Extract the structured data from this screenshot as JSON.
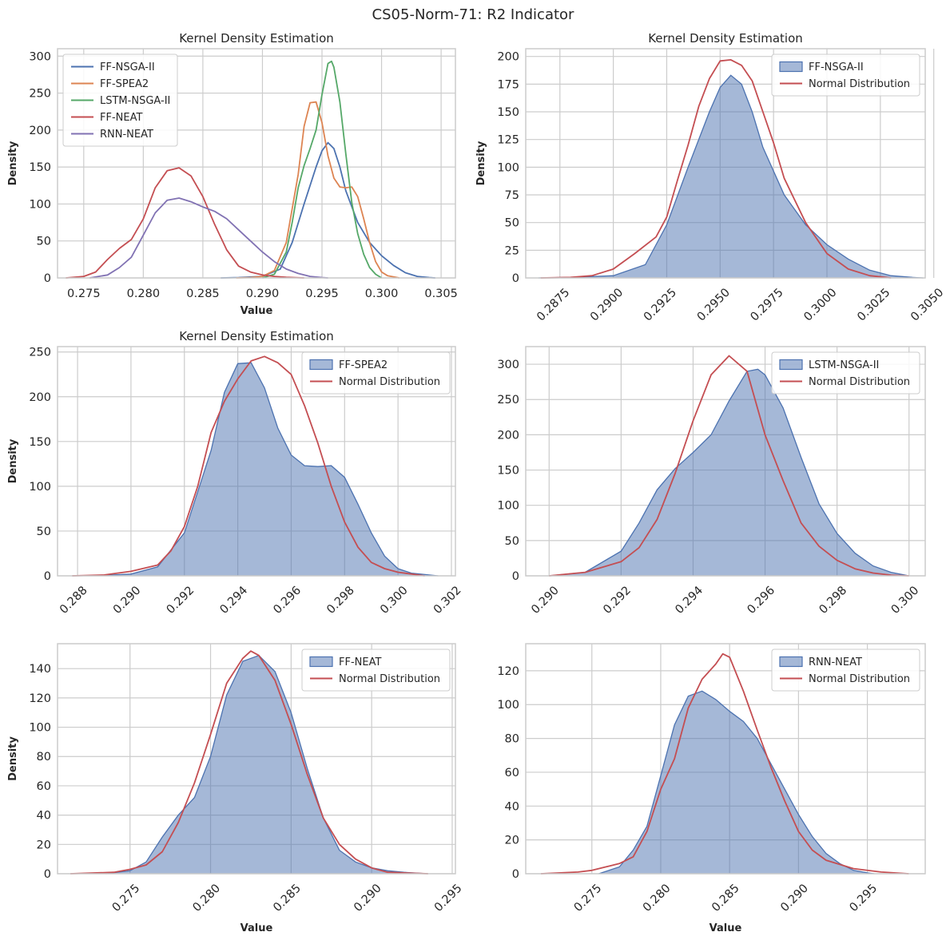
{
  "suptitle": "CS05-Norm-71: R2 Indicator",
  "colors": {
    "nsga": "#4c72b0",
    "spea": "#dd8452",
    "lstm": "#55a868",
    "neat": "#c44e52",
    "rnn": "#8172b3",
    "fill": "#4c72b0",
    "normal": "#c44e52",
    "grid": "#cccccc",
    "frame": "#cccccc"
  },
  "chart_data": [
    {
      "type": "line",
      "title": "Kernel Density Estimation",
      "xlabel": "Value",
      "ylabel": "Density",
      "xlim": [
        0.2728,
        0.3062
      ],
      "ylim": [
        0,
        310
      ],
      "xticks": [
        0.275,
        0.28,
        0.285,
        0.29,
        0.295,
        0.3,
        0.305
      ],
      "xticklabels": [
        "0.275",
        "0.280",
        "0.285",
        "0.290",
        "0.295",
        "0.300",
        "0.305"
      ],
      "yticks": [
        0,
        50,
        100,
        150,
        200,
        250,
        300
      ],
      "yticklabels": [
        "0",
        "50",
        "100",
        "150",
        "200",
        "250",
        "300"
      ],
      "grid": true,
      "legend": "top-left",
      "series": [
        {
          "name": "FF-NSGA-II",
          "color": "nsga",
          "x": [
            0.2865,
            0.288,
            0.29,
            0.2915,
            0.2925,
            0.2935,
            0.2945,
            0.295,
            0.2955,
            0.296,
            0.2965,
            0.297,
            0.298,
            0.299,
            0.3,
            0.301,
            0.302,
            0.303,
            0.304,
            0.3045
          ],
          "y": [
            0,
            0.5,
            2,
            12,
            48,
            100,
            150,
            172,
            183,
            175,
            150,
            118,
            75,
            48,
            30,
            17,
            7,
            2,
            0.5,
            0
          ]
        },
        {
          "name": "FF-SPEA2",
          "color": "spea",
          "x": [
            0.2878,
            0.289,
            0.29,
            0.291,
            0.292,
            0.293,
            0.2935,
            0.294,
            0.2945,
            0.295,
            0.2955,
            0.296,
            0.2965,
            0.297,
            0.2975,
            0.298,
            0.2985,
            0.299,
            0.2995,
            0.3,
            0.3005,
            0.3015
          ],
          "y": [
            0,
            0.5,
            2,
            10,
            48,
            140,
            205,
            237,
            238,
            210,
            165,
            135,
            123,
            122,
            123,
            110,
            80,
            48,
            22,
            8,
            3,
            0
          ]
        },
        {
          "name": "LSTM-NSGA-II",
          "color": "lstm",
          "x": [
            0.29,
            0.291,
            0.292,
            0.2925,
            0.293,
            0.2935,
            0.294,
            0.2945,
            0.295,
            0.2955,
            0.2958,
            0.296,
            0.2965,
            0.297,
            0.2975,
            0.298,
            0.2985,
            0.299,
            0.2995,
            0.3
          ],
          "y": [
            0,
            5,
            35,
            75,
            122,
            152,
            175,
            200,
            248,
            290,
            293,
            285,
            238,
            168,
            102,
            60,
            32,
            14,
            5,
            0
          ]
        },
        {
          "name": "FF-NEAT",
          "color": "neat",
          "x": [
            0.2735,
            0.275,
            0.276,
            0.277,
            0.278,
            0.279,
            0.28,
            0.281,
            0.282,
            0.283,
            0.284,
            0.285,
            0.286,
            0.287,
            0.288,
            0.289,
            0.29,
            0.291,
            0.292,
            0.2935
          ],
          "y": [
            0,
            2,
            8,
            25,
            40,
            52,
            80,
            122,
            145,
            149,
            138,
            110,
            72,
            38,
            16,
            8,
            4,
            2,
            1,
            0
          ]
        },
        {
          "name": "RNN-NEAT",
          "color": "rnn",
          "x": [
            0.2755,
            0.277,
            0.278,
            0.279,
            0.28,
            0.281,
            0.282,
            0.283,
            0.284,
            0.285,
            0.286,
            0.287,
            0.288,
            0.289,
            0.29,
            0.291,
            0.292,
            0.293,
            0.294,
            0.295,
            0.2955
          ],
          "y": [
            0,
            4,
            14,
            28,
            58,
            88,
            105,
            108,
            103,
            96,
            90,
            80,
            65,
            50,
            35,
            22,
            12,
            6,
            2,
            0.5,
            0
          ]
        }
      ]
    },
    {
      "type": "area",
      "title": "Kernel Density Estimation",
      "xlabel": "",
      "ylabel": "Density",
      "xlim": [
        0.2859,
        0.3046
      ],
      "ylim": [
        0,
        207
      ],
      "xticks": [
        0.2875,
        0.29,
        0.2925,
        0.295,
        0.2975,
        0.3,
        0.3025,
        0.305
      ],
      "xticklabels": [
        "0.2875",
        "0.2900",
        "0.2925",
        "0.2950",
        "0.2975",
        "0.3000",
        "0.3025",
        "0.3050"
      ],
      "yticks": [
        0,
        25,
        50,
        75,
        100,
        125,
        150,
        175,
        200
      ],
      "yticklabels": [
        "0",
        "25",
        "50",
        "75",
        "100",
        "125",
        "150",
        "175",
        "200"
      ],
      "grid": true,
      "legend": "top-right",
      "series": [
        {
          "name": "FF-NSGA-II",
          "kind": "fill",
          "color": "fill",
          "x": [
            0.2865,
            0.288,
            0.29,
            0.2915,
            0.2925,
            0.2935,
            0.2945,
            0.295,
            0.2955,
            0.296,
            0.2965,
            0.297,
            0.298,
            0.299,
            0.3,
            0.301,
            0.302,
            0.303,
            0.304,
            0.3045
          ],
          "y": [
            0,
            0.5,
            2,
            12,
            48,
            100,
            150,
            172,
            183,
            175,
            150,
            118,
            75,
            48,
            30,
            17,
            7,
            2,
            0.5,
            0
          ]
        },
        {
          "name": "Normal Distribution",
          "kind": "line",
          "color": "normal",
          "x": [
            0.2866,
            0.288,
            0.289,
            0.29,
            0.291,
            0.292,
            0.2925,
            0.293,
            0.2935,
            0.294,
            0.2945,
            0.295,
            0.2955,
            0.296,
            0.2965,
            0.297,
            0.2975,
            0.298,
            0.299,
            0.3,
            0.301,
            0.302,
            0.303
          ],
          "y": [
            0,
            0.5,
            2,
            8,
            22,
            37,
            55,
            88,
            120,
            155,
            180,
            196,
            197,
            192,
            178,
            150,
            122,
            90,
            50,
            22,
            8,
            2,
            0
          ]
        }
      ]
    },
    {
      "type": "area",
      "title": "Kernel Density Estimation",
      "xlabel": "",
      "ylabel": "Density",
      "xlim": [
        0.28725,
        0.30215
      ],
      "ylim": [
        0,
        256
      ],
      "xticks": [
        0.288,
        0.29,
        0.292,
        0.294,
        0.296,
        0.298,
        0.3,
        0.302
      ],
      "xticklabels": [
        "0.288",
        "0.290",
        "0.292",
        "0.294",
        "0.296",
        "0.298",
        "0.300",
        "0.302"
      ],
      "yticks": [
        0,
        50,
        100,
        150,
        200,
        250
      ],
      "yticklabels": [
        "0",
        "50",
        "100",
        "150",
        "200",
        "250"
      ],
      "grid": true,
      "legend": "top-right",
      "series": [
        {
          "name": "FF-SPEA2",
          "kind": "fill",
          "color": "fill",
          "x": [
            0.2878,
            0.289,
            0.29,
            0.291,
            0.292,
            0.293,
            0.2935,
            0.294,
            0.2945,
            0.295,
            0.2955,
            0.296,
            0.2965,
            0.297,
            0.2975,
            0.298,
            0.2985,
            0.299,
            0.2995,
            0.3,
            0.3005,
            0.3015
          ],
          "y": [
            0,
            0.5,
            2,
            10,
            48,
            140,
            205,
            237,
            238,
            210,
            165,
            135,
            123,
            122,
            123,
            110,
            80,
            48,
            22,
            8,
            3,
            0
          ]
        },
        {
          "name": "Normal Distribution",
          "kind": "line",
          "color": "normal",
          "x": [
            0.2878,
            0.289,
            0.29,
            0.291,
            0.2915,
            0.292,
            0.2925,
            0.293,
            0.2935,
            0.294,
            0.2945,
            0.295,
            0.2955,
            0.296,
            0.2965,
            0.297,
            0.2975,
            0.298,
            0.2985,
            0.299,
            0.2995,
            0.3,
            0.301
          ],
          "y": [
            0,
            1,
            5,
            12,
            28,
            55,
            100,
            160,
            195,
            220,
            240,
            245,
            238,
            225,
            190,
            148,
            100,
            60,
            32,
            15,
            8,
            4,
            0
          ]
        }
      ]
    },
    {
      "type": "area",
      "title": "",
      "xlabel": "",
      "ylabel": "",
      "xlim": [
        0.28935,
        0.30045
      ],
      "ylim": [
        0,
        325
      ],
      "xticks": [
        0.29,
        0.292,
        0.294,
        0.296,
        0.298,
        0.3
      ],
      "xticklabels": [
        "0.290",
        "0.292",
        "0.294",
        "0.296",
        "0.298",
        "0.300"
      ],
      "yticks": [
        0,
        50,
        100,
        150,
        200,
        250,
        300
      ],
      "yticklabels": [
        "0",
        "50",
        "100",
        "150",
        "200",
        "250",
        "300"
      ],
      "grid": true,
      "legend": "top-right",
      "series": [
        {
          "name": "LSTM-NSGA-II",
          "kind": "fill",
          "color": "fill",
          "x": [
            0.29,
            0.291,
            0.292,
            0.2925,
            0.293,
            0.2935,
            0.294,
            0.2945,
            0.295,
            0.2955,
            0.2958,
            0.296,
            0.2965,
            0.297,
            0.2975,
            0.298,
            0.2985,
            0.299,
            0.2995,
            0.3
          ],
          "y": [
            0,
            5,
            35,
            75,
            122,
            152,
            175,
            200,
            248,
            290,
            293,
            285,
            238,
            168,
            102,
            60,
            32,
            14,
            5,
            0
          ]
        },
        {
          "name": "Normal Distribution",
          "kind": "line",
          "color": "normal",
          "x": [
            0.29,
            0.291,
            0.292,
            0.2925,
            0.293,
            0.2935,
            0.294,
            0.2945,
            0.295,
            0.2955,
            0.296,
            0.2965,
            0.297,
            0.2975,
            0.298,
            0.2985,
            0.299,
            0.2995,
            0.3
          ],
          "y": [
            0,
            5,
            20,
            40,
            80,
            145,
            220,
            285,
            312,
            290,
            200,
            135,
            75,
            42,
            22,
            10,
            4,
            1,
            0
          ]
        }
      ]
    },
    {
      "type": "area",
      "title": "",
      "xlabel": "Value",
      "ylabel": "Density",
      "xlim": [
        0.2705,
        0.2952
      ],
      "ylim": [
        0,
        157
      ],
      "xticks": [
        0.275,
        0.28,
        0.285,
        0.29,
        0.295
      ],
      "xticklabels": [
        "0.275",
        "0.280",
        "0.285",
        "0.290",
        "0.295"
      ],
      "yticks": [
        0,
        20,
        40,
        60,
        80,
        100,
        120,
        140
      ],
      "yticklabels": [
        "0",
        "20",
        "40",
        "60",
        "80",
        "100",
        "120",
        "140"
      ],
      "grid": true,
      "legend": "top-right",
      "series": [
        {
          "name": "FF-NEAT",
          "kind": "fill",
          "color": "fill",
          "x": [
            0.2735,
            0.275,
            0.276,
            0.277,
            0.278,
            0.279,
            0.28,
            0.281,
            0.282,
            0.283,
            0.284,
            0.285,
            0.286,
            0.287,
            0.288,
            0.289,
            0.29,
            0.291,
            0.292,
            0.2935
          ],
          "y": [
            0,
            2,
            8,
            25,
            40,
            52,
            80,
            122,
            145,
            149,
            138,
            110,
            72,
            38,
            16,
            8,
            4,
            2,
            1,
            0
          ]
        },
        {
          "name": "Normal Distribution",
          "kind": "line",
          "color": "normal",
          "x": [
            0.2713,
            0.274,
            0.275,
            0.276,
            0.277,
            0.278,
            0.279,
            0.28,
            0.281,
            0.282,
            0.2825,
            0.283,
            0.284,
            0.285,
            0.286,
            0.287,
            0.288,
            0.289,
            0.29,
            0.291,
            0.2935
          ],
          "y": [
            0,
            1,
            3,
            6,
            15,
            35,
            62,
            95,
            130,
            147,
            152,
            149,
            132,
            102,
            68,
            38,
            20,
            10,
            4,
            1,
            0
          ]
        }
      ]
    },
    {
      "type": "area",
      "title": "",
      "xlabel": "Value",
      "ylabel": "",
      "xlim": [
        0.2702,
        0.2992
      ],
      "ylim": [
        0,
        136
      ],
      "xticks": [
        0.275,
        0.28,
        0.285,
        0.29,
        0.295
      ],
      "xticklabels": [
        "0.275",
        "0.280",
        "0.285",
        "0.290",
        "0.295"
      ],
      "yticks": [
        0,
        20,
        40,
        60,
        80,
        100,
        120
      ],
      "yticklabels": [
        "0",
        "20",
        "40",
        "60",
        "80",
        "100",
        "120"
      ],
      "grid": true,
      "legend": "top-right",
      "series": [
        {
          "name": "RNN-NEAT",
          "kind": "fill",
          "color": "fill",
          "x": [
            0.2755,
            0.277,
            0.278,
            0.279,
            0.28,
            0.281,
            0.282,
            0.283,
            0.284,
            0.285,
            0.286,
            0.287,
            0.288,
            0.289,
            0.29,
            0.291,
            0.292,
            0.293,
            0.294,
            0.295,
            0.2955
          ],
          "y": [
            0,
            4,
            14,
            28,
            58,
            88,
            105,
            108,
            103,
            96,
            90,
            80,
            65,
            50,
            35,
            22,
            12,
            6,
            2,
            0.5,
            0
          ]
        },
        {
          "name": "Normal Distribution",
          "kind": "line",
          "color": "normal",
          "x": [
            0.2713,
            0.274,
            0.275,
            0.276,
            0.277,
            0.278,
            0.279,
            0.28,
            0.281,
            0.282,
            0.283,
            0.284,
            0.2845,
            0.285,
            0.286,
            0.287,
            0.288,
            0.289,
            0.29,
            0.291,
            0.292,
            0.294,
            0.296,
            0.298
          ],
          "y": [
            0,
            1,
            2,
            4,
            6,
            10,
            25,
            50,
            68,
            98,
            115,
            124,
            130,
            128,
            108,
            85,
            63,
            43,
            25,
            14,
            8,
            3,
            1,
            0
          ]
        }
      ]
    }
  ]
}
